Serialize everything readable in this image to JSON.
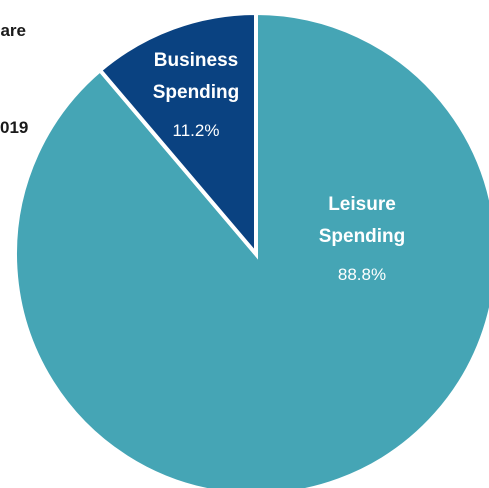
{
  "side_text": {
    "top": "are",
    "bottom": "019"
  },
  "chart_data": {
    "type": "pie",
    "title": "",
    "slices": [
      {
        "label_lines": [
          "Leisure",
          "Spending"
        ],
        "value": 88.8,
        "value_label": "88.8%",
        "color": "#45a5b5"
      },
      {
        "label_lines": [
          "Business",
          "Spending"
        ],
        "value": 11.2,
        "value_label": "11.2%",
        "color": "#0a4281"
      }
    ],
    "start_angle": "12 o'clock",
    "direction": "counter-clockwise for the smaller slice",
    "separator_color": "#ffffff",
    "legend": "none (labels inside slices)"
  }
}
